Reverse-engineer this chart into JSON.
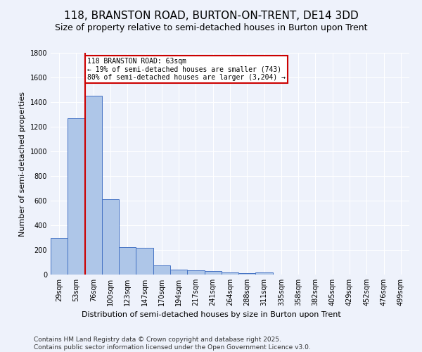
{
  "title": "118, BRANSTON ROAD, BURTON-ON-TRENT, DE14 3DD",
  "subtitle": "Size of property relative to semi-detached houses in Burton upon Trent",
  "xlabel": "Distribution of semi-detached houses by size in Burton upon Trent",
  "ylabel": "Number of semi-detached properties",
  "categories": [
    "29sqm",
    "53sqm",
    "76sqm",
    "100sqm",
    "123sqm",
    "147sqm",
    "170sqm",
    "194sqm",
    "217sqm",
    "241sqm",
    "264sqm",
    "288sqm",
    "311sqm",
    "335sqm",
    "358sqm",
    "382sqm",
    "405sqm",
    "429sqm",
    "452sqm",
    "476sqm",
    "499sqm"
  ],
  "values": [
    300,
    1270,
    1450,
    610,
    225,
    220,
    75,
    40,
    35,
    30,
    20,
    10,
    20,
    0,
    0,
    0,
    0,
    0,
    0,
    0,
    0
  ],
  "bar_color": "#aec6e8",
  "bar_edge_color": "#4472c4",
  "background_color": "#eef2fb",
  "grid_color": "#ffffff",
  "property_line_x": 1.5,
  "annotation_text": "118 BRANSTON ROAD: 63sqm\n← 19% of semi-detached houses are smaller (743)\n80% of semi-detached houses are larger (3,204) →",
  "annotation_box_color": "#ffffff",
  "annotation_box_edge_color": "#cc0000",
  "vline_color": "#cc0000",
  "footer_text": "Contains HM Land Registry data © Crown copyright and database right 2025.\nContains public sector information licensed under the Open Government Licence v3.0.",
  "ylim": [
    0,
    1800
  ],
  "yticks": [
    0,
    200,
    400,
    600,
    800,
    1000,
    1200,
    1400,
    1600,
    1800
  ],
  "title_fontsize": 11,
  "subtitle_fontsize": 9,
  "xlabel_fontsize": 8,
  "ylabel_fontsize": 8,
  "tick_fontsize": 7,
  "footer_fontsize": 6.5
}
